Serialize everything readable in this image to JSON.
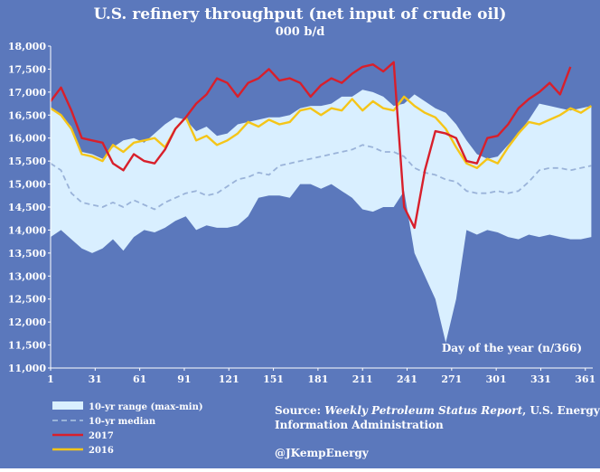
{
  "chart_data": {
    "type": "line",
    "title": "U.S. refinery throughput (net input of  crude oil)",
    "subtitle": "000 b/d",
    "xlabel": "Day of the year (n/366)",
    "ylabel": "",
    "xlim": [
      1,
      366
    ],
    "ylim": [
      11000,
      18000
    ],
    "x_ticks": [
      "1",
      "31",
      "61",
      "91",
      "121",
      "151",
      "181",
      "211",
      "241",
      "271",
      "301",
      "331",
      "361"
    ],
    "y_ticks": [
      "11,000",
      "11,500",
      "12,000",
      "12,500",
      "13,000",
      "13,500",
      "14,000",
      "14,500",
      "15,000",
      "15,500",
      "16,000",
      "16,500",
      "17,000",
      "17,500",
      "18,000"
    ],
    "grid": false,
    "legend_position": "bottom-left",
    "colors": {
      "background": "#5b78bc",
      "range_fill": "#d9efff",
      "median": "#9ab3d9",
      "y2017": "#d81f2b",
      "y2016": "#f5c518",
      "text": "#ffffff"
    },
    "series": [
      {
        "name": "10-yr range (max-min)",
        "kind": "range",
        "x": [
          1,
          8,
          15,
          22,
          29,
          36,
          43,
          50,
          57,
          64,
          71,
          78,
          85,
          92,
          99,
          106,
          113,
          120,
          127,
          134,
          141,
          148,
          155,
          162,
          169,
          176,
          183,
          190,
          197,
          204,
          211,
          218,
          225,
          232,
          239,
          246,
          253,
          260,
          267,
          274,
          281,
          288,
          295,
          302,
          309,
          316,
          323,
          330,
          337,
          344,
          351,
          358,
          365
        ],
        "high": [
          16650,
          16500,
          16250,
          15700,
          15650,
          15550,
          15800,
          15950,
          16000,
          15900,
          16100,
          16300,
          16450,
          16400,
          16150,
          16250,
          16050,
          16100,
          16300,
          16350,
          16400,
          16450,
          16450,
          16500,
          16650,
          16700,
          16700,
          16750,
          16900,
          16900,
          17050,
          17000,
          16900,
          16700,
          16750,
          16950,
          16800,
          16650,
          16550,
          16300,
          15950,
          15650,
          15550,
          15600,
          15850,
          16100,
          16400,
          16750,
          16700,
          16650,
          16600,
          16650,
          16700
        ],
        "low": [
          13850,
          14000,
          13800,
          13600,
          13500,
          13600,
          13800,
          13550,
          13850,
          14000,
          13950,
          14050,
          14200,
          14300,
          14000,
          14100,
          14050,
          14050,
          14100,
          14300,
          14700,
          14750,
          14750,
          14700,
          15000,
          15000,
          14900,
          15000,
          14850,
          14700,
          14450,
          14400,
          14500,
          14500,
          14850,
          13500,
          13000,
          12500,
          11550,
          12500,
          14000,
          13900,
          14000,
          13950,
          13850,
          13800,
          13900,
          13850,
          13900,
          13850,
          13800,
          13800,
          13850
        ]
      },
      {
        "name": "10-yr median",
        "kind": "median",
        "x": [
          1,
          8,
          15,
          22,
          29,
          36,
          43,
          50,
          57,
          64,
          71,
          78,
          85,
          92,
          99,
          106,
          113,
          120,
          127,
          134,
          141,
          148,
          155,
          162,
          169,
          176,
          183,
          190,
          197,
          204,
          211,
          218,
          225,
          232,
          239,
          246,
          253,
          260,
          267,
          274,
          281,
          288,
          295,
          302,
          309,
          316,
          323,
          330,
          337,
          344,
          351,
          358,
          365
        ],
        "values": [
          15450,
          15300,
          14800,
          14600,
          14550,
          14500,
          14600,
          14500,
          14650,
          14550,
          14450,
          14600,
          14700,
          14800,
          14850,
          14750,
          14800,
          14950,
          15100,
          15150,
          15250,
          15200,
          15400,
          15450,
          15500,
          15550,
          15600,
          15650,
          15700,
          15750,
          15850,
          15800,
          15700,
          15700,
          15600,
          15350,
          15250,
          15200,
          15100,
          15050,
          14850,
          14800,
          14800,
          14850,
          14800,
          14850,
          15050,
          15300,
          15350,
          15350,
          15300,
          15350,
          15400
        ]
      },
      {
        "name": "2017",
        "kind": "line",
        "x": [
          1,
          8,
          15,
          22,
          29,
          36,
          43,
          50,
          57,
          64,
          71,
          78,
          85,
          92,
          99,
          106,
          113,
          120,
          127,
          134,
          141,
          148,
          155,
          162,
          169,
          176,
          183,
          190,
          197,
          204,
          211,
          218,
          225,
          232,
          239,
          246,
          253,
          260,
          267,
          274,
          281,
          288,
          295,
          302,
          309,
          316,
          323,
          330,
          337,
          344,
          351
        ],
        "values": [
          16800,
          17100,
          16600,
          16000,
          15950,
          15900,
          15450,
          15300,
          15650,
          15500,
          15450,
          15750,
          16200,
          16450,
          16750,
          16950,
          17300,
          17200,
          16900,
          17200,
          17300,
          17500,
          17250,
          17300,
          17200,
          16900,
          17150,
          17300,
          17200,
          17400,
          17550,
          17600,
          17450,
          17650,
          14500,
          14050,
          15300,
          16150,
          16100,
          16000,
          15500,
          15450,
          16000,
          16050,
          16300,
          16650,
          16850,
          17000,
          17200,
          16950,
          17550
        ]
      },
      {
        "name": "2016",
        "kind": "line",
        "x": [
          1,
          8,
          15,
          22,
          29,
          36,
          43,
          50,
          57,
          64,
          71,
          78,
          85,
          92,
          99,
          106,
          113,
          120,
          127,
          134,
          141,
          148,
          155,
          162,
          169,
          176,
          183,
          190,
          197,
          204,
          211,
          218,
          225,
          232,
          239,
          246,
          253,
          260,
          267,
          274,
          281,
          288,
          295,
          302,
          309,
          316,
          323,
          330,
          337,
          344,
          351,
          358,
          365
        ],
        "values": [
          16650,
          16500,
          16200,
          15650,
          15600,
          15500,
          15850,
          15700,
          15900,
          15950,
          16000,
          15800,
          16200,
          16450,
          15950,
          16050,
          15850,
          15950,
          16100,
          16350,
          16250,
          16400,
          16300,
          16350,
          16600,
          16650,
          16500,
          16650,
          16600,
          16850,
          16600,
          16800,
          16650,
          16600,
          16900,
          16700,
          16550,
          16450,
          16200,
          15800,
          15450,
          15350,
          15550,
          15450,
          15800,
          16100,
          16350,
          16300,
          16400,
          16500,
          16650,
          16550,
          16700
        ]
      }
    ],
    "legend": [
      {
        "key": "range",
        "label": "10-yr range (max-min)"
      },
      {
        "key": "median",
        "label": "10-yr median"
      },
      {
        "key": "y2017",
        "label": "2017"
      },
      {
        "key": "y2016",
        "label": "2016"
      }
    ],
    "source": {
      "prefix": "Source: ",
      "report": "Weekly Petroleum Status Report",
      "rest_line1": ", U.S. Energy",
      "line2": "Information Administration"
    },
    "credit": "@JKempEnergy"
  }
}
